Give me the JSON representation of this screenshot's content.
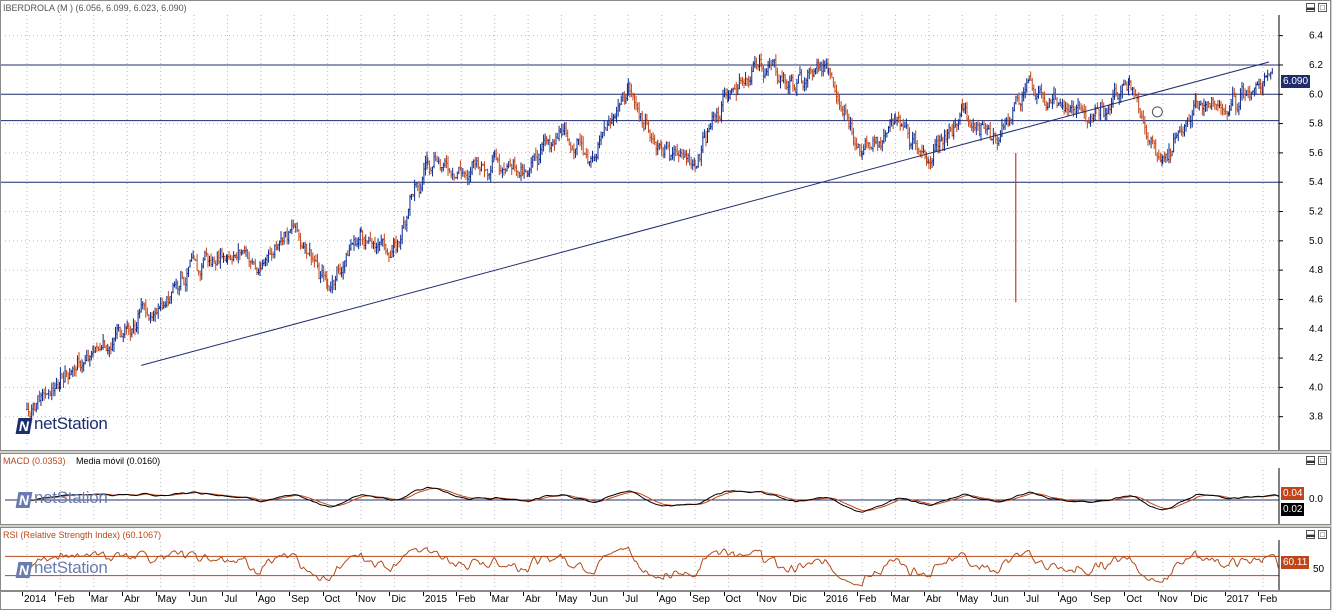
{
  "main": {
    "title": "IBERDROLA (M )",
    "ohlc": "(6.056, 6.099, 6.023, 6.090)",
    "last_label": "6.090",
    "logo": "netStation",
    "y_ticks": [
      "3.8",
      "4.0",
      "4.2",
      "4.4",
      "4.6",
      "4.8",
      "5.0",
      "5.2",
      "5.4",
      "5.6",
      "5.8",
      "6.0",
      "6.2",
      "6.4"
    ]
  },
  "macd": {
    "title": "MACD (0.0353)",
    "signal": "Media móvil (0.0160)",
    "last_macd": "0.04",
    "last_signal": "0.02",
    "tick": "0.0",
    "logo": "netStation"
  },
  "rsi": {
    "title": "RSI (Relative Strength Index) (60.1067)",
    "last": "60.11",
    "tick": "50",
    "logo": "netStation"
  },
  "x_labels": [
    "2014",
    "Feb",
    "Mar",
    "Abr",
    "May",
    "Jun",
    "Jul",
    "Ago",
    "Sep",
    "Oct",
    "Nov",
    "Dic",
    "2015",
    "Feb",
    "Mar",
    "Abr",
    "May",
    "Jun",
    "Jul",
    "Ago",
    "Sep",
    "Oct",
    "Nov",
    "Dic",
    "2016",
    "Feb",
    "Mar",
    "Abr",
    "May",
    "Jun",
    "Jul",
    "Ago",
    "Sep",
    "Oct",
    "Nov",
    "Dic",
    "2017",
    "Feb"
  ],
  "colors": {
    "up": "#0b2a8c",
    "down": "#c0461a",
    "line": "#1f2d6e",
    "grid": "#b8b8b8",
    "rsi": "#b24a1a",
    "macd_signal": "#c0461a",
    "macd_line": "#000000"
  },
  "chart_data": [
    {
      "type": "candlestick",
      "title": "IBERDROLA (M )",
      "ylim": [
        3.6,
        6.5
      ],
      "x_range": [
        "2014-01",
        "2017-02"
      ],
      "horizontal_levels": [
        6.2,
        6.0,
        5.82,
        5.4
      ],
      "trendline": [
        {
          "date": "2014-04",
          "value": 4.15
        },
        {
          "date": "2017-02",
          "value": 6.22
        }
      ],
      "series": [
        {
          "name": "IBERDROLA",
          "points": [
            {
              "date": "2014-01",
              "value": 3.85
            },
            {
              "date": "2014-02",
              "value": 4.05
            },
            {
              "date": "2014-03",
              "value": 4.25
            },
            {
              "date": "2014-04",
              "value": 4.4
            },
            {
              "date": "2014-05",
              "value": 4.55
            },
            {
              "date": "2014-06",
              "value": 4.85
            },
            {
              "date": "2014-07",
              "value": 4.95
            },
            {
              "date": "2014-08",
              "value": 4.85
            },
            {
              "date": "2014-09",
              "value": 5.05
            },
            {
              "date": "2014-10",
              "value": 4.7
            },
            {
              "date": "2014-11",
              "value": 5.05
            },
            {
              "date": "2014-12",
              "value": 4.95
            },
            {
              "date": "2015-01",
              "value": 5.55
            },
            {
              "date": "2015-02",
              "value": 5.45
            },
            {
              "date": "2015-03",
              "value": 5.55
            },
            {
              "date": "2015-04",
              "value": 5.5
            },
            {
              "date": "2015-05",
              "value": 5.75
            },
            {
              "date": "2015-06",
              "value": 5.6
            },
            {
              "date": "2015-07",
              "value": 6.05
            },
            {
              "date": "2015-08",
              "value": 5.6
            },
            {
              "date": "2015-09",
              "value": 5.55
            },
            {
              "date": "2015-10",
              "value": 6.05
            },
            {
              "date": "2015-11",
              "value": 6.2
            },
            {
              "date": "2015-12",
              "value": 6.05
            },
            {
              "date": "2016-01",
              "value": 6.2
            },
            {
              "date": "2016-02",
              "value": 5.6
            },
            {
              "date": "2016-03",
              "value": 5.8
            },
            {
              "date": "2016-04",
              "value": 5.55
            },
            {
              "date": "2016-05",
              "value": 5.9
            },
            {
              "date": "2016-06",
              "value": 5.7
            },
            {
              "date": "2016-07",
              "value": 6.05
            },
            {
              "date": "2016-08",
              "value": 5.9
            },
            {
              "date": "2016-09",
              "value": 5.85
            },
            {
              "date": "2016-10",
              "value": 6.1
            },
            {
              "date": "2016-11",
              "value": 5.5
            },
            {
              "date": "2016-12",
              "value": 5.95
            },
            {
              "date": "2017-01",
              "value": 5.9
            },
            {
              "date": "2017-02",
              "value": 6.09
            }
          ]
        }
      ]
    },
    {
      "type": "line",
      "title": "MACD (0.0353)",
      "series": [
        {
          "name": "MACD",
          "last": 0.04
        },
        {
          "name": "Media móvil",
          "last": 0.02
        }
      ]
    },
    {
      "type": "line",
      "title": "RSI (Relative Strength Index) (60.1067)",
      "series": [
        {
          "name": "RSI",
          "last": 60.11
        }
      ]
    }
  ]
}
